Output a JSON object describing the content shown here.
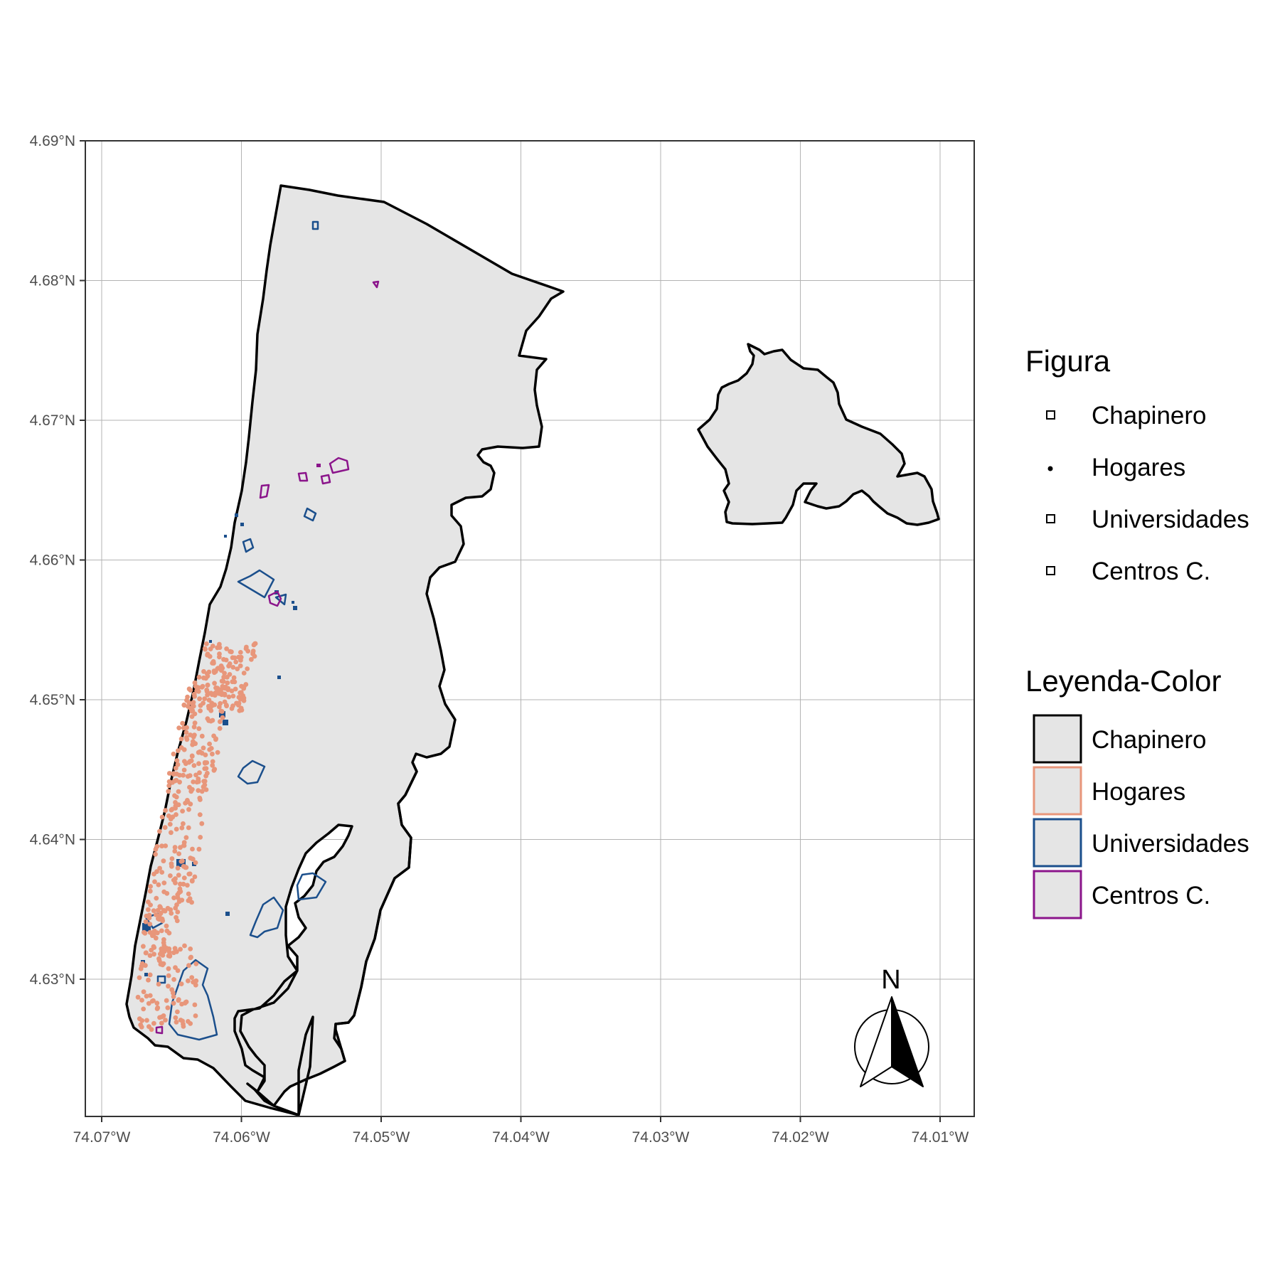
{
  "map": {
    "x_ticks": [
      {
        "value": -74.07,
        "label": "74.07°W"
      },
      {
        "value": -74.06,
        "label": "74.06°W"
      },
      {
        "value": -74.05,
        "label": "74.05°W"
      },
      {
        "value": -74.04,
        "label": "74.04°W"
      },
      {
        "value": -74.03,
        "label": "74.03°W"
      },
      {
        "value": -74.02,
        "label": "74.02°W"
      },
      {
        "value": -74.01,
        "label": "74.01°W"
      }
    ],
    "y_ticks": [
      {
        "value": 4.69,
        "label": "4.69°N"
      },
      {
        "value": 4.68,
        "label": "4.68°N"
      },
      {
        "value": 4.67,
        "label": "4.67°N"
      },
      {
        "value": 4.66,
        "label": "4.66°N"
      },
      {
        "value": 4.65,
        "label": "4.65°N"
      },
      {
        "value": 4.64,
        "label": "4.64°N"
      },
      {
        "value": 4.63,
        "label": "4.63°N"
      }
    ],
    "xlim": [
      -74.0712,
      -74.0074
    ],
    "ylim": [
      4.62,
      4.69
    ],
    "grid": true,
    "north_arrow": {
      "label": "N",
      "placement": "bottom-right"
    }
  },
  "legend_figura": {
    "title": "Figura",
    "items": [
      {
        "label": "Chapinero",
        "symbol": "square"
      },
      {
        "label": "Hogares",
        "symbol": "point"
      },
      {
        "label": "Universidades",
        "symbol": "square"
      },
      {
        "label": "Centros C.",
        "symbol": "square"
      }
    ]
  },
  "legend_color": {
    "title": "Leyenda-Color",
    "items": [
      {
        "label": "Chapinero",
        "stroke": "#000000",
        "fill": "#e5e5e5"
      },
      {
        "label": "Hogares",
        "stroke": "#e8967a",
        "fill": "#e5e5e5"
      },
      {
        "label": "Universidades",
        "stroke": "#1b4f8c",
        "fill": "#e5e5e5"
      },
      {
        "label": "Centros C.",
        "stroke": "#8b158b",
        "fill": "#e5e5e5"
      }
    ]
  },
  "colors": {
    "chapinero_fill": "#e5e5e5",
    "chapinero_stroke": "#000000",
    "hogares": "#e8967a",
    "universidades": "#1b4f8c",
    "centros": "#8b158b",
    "grid": "#b3b3b3"
  }
}
